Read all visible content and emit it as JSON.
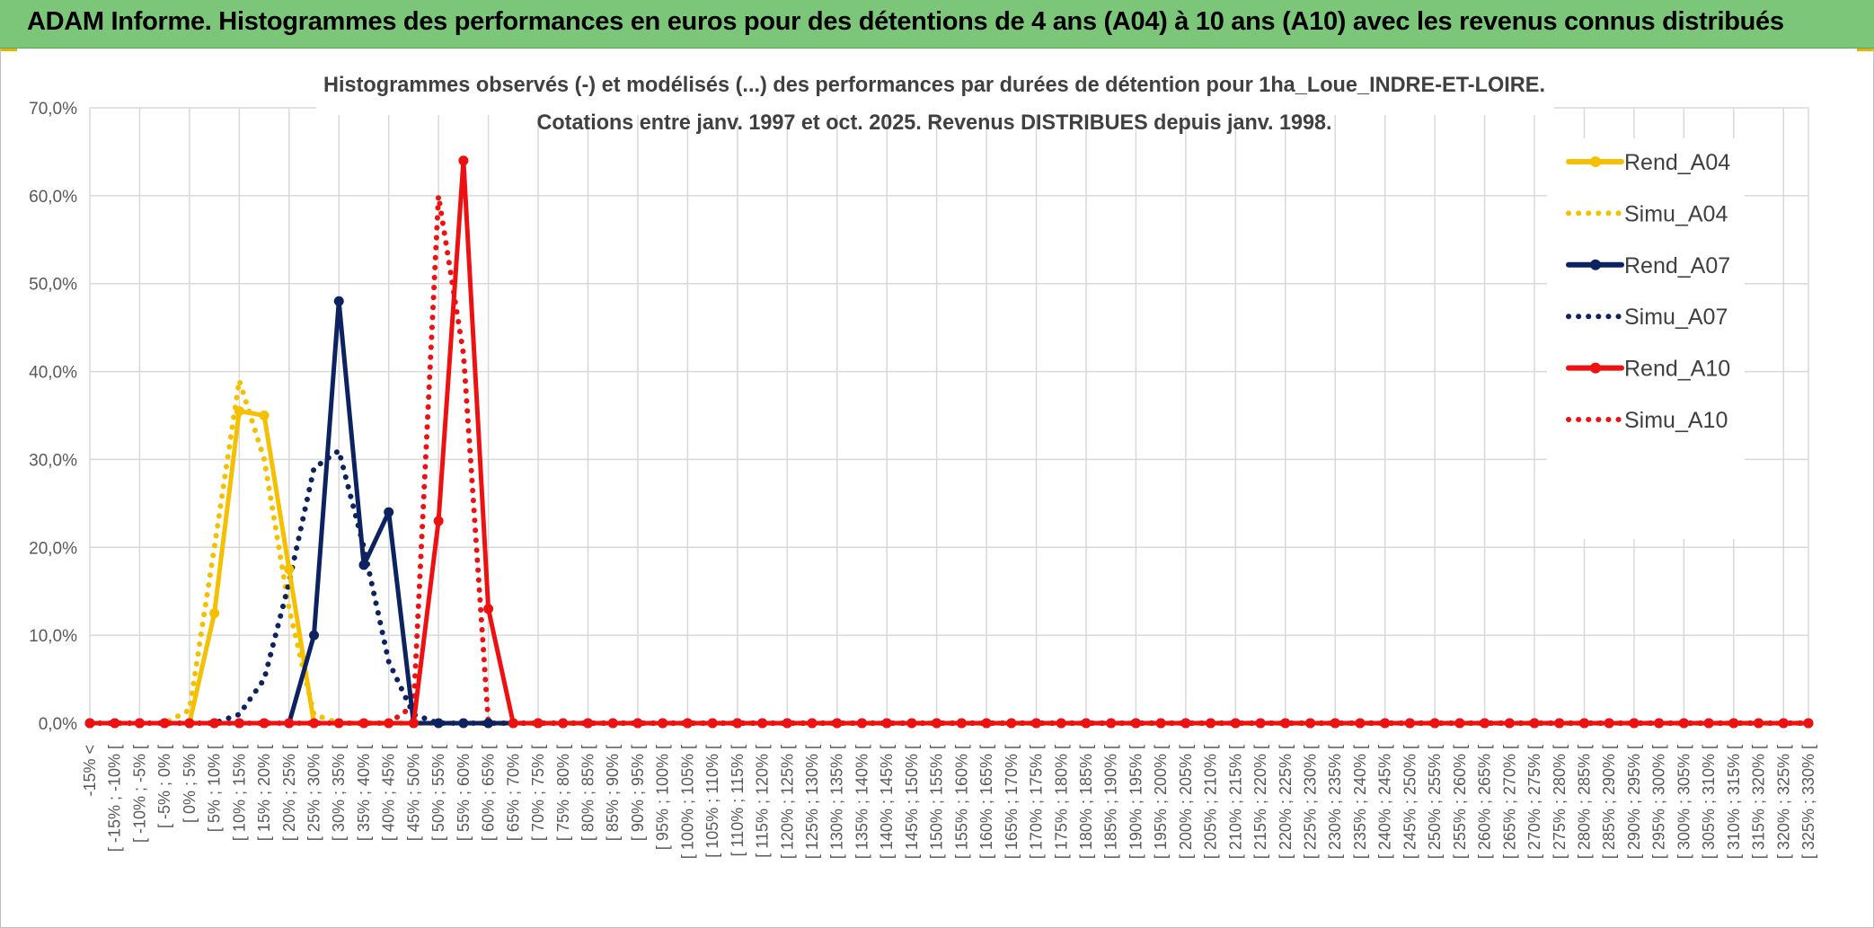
{
  "header": {
    "title": "ADAM Informe. Histogrammes des performances en euros pour des détentions de 4 ans (A04) à 10 ans (A10) avec les revenus connus distribués"
  },
  "colors": {
    "header_bg": "#7cc67a",
    "A04": "#f5c000",
    "A07": "#0d2260",
    "A10": "#ee1111",
    "grid": "#d9d9d9",
    "axis_text": "#595959"
  },
  "chart_data": {
    "type": "line",
    "title_lines": [
      "Histogrammes observés (-) et modélisés (...) des performances par durées de détention pour 1ha_Loue_INDRE-ET-LOIRE.",
      "Cotations entre janv. 1997 et oct. 2025.  Revenus DISTRIBUES depuis janv. 1998."
    ],
    "ylim": [
      0,
      70
    ],
    "yticks": [
      "0,0%",
      "10,0%",
      "20,0%",
      "30,0%",
      "40,0%",
      "50,0%",
      "60,0%",
      "70,0%"
    ],
    "categories": [
      "-15% <",
      "[ -15% ; -10% [",
      "[ -10% ; -5% [",
      "[ -5% ; 0% [",
      "[ 0% ; 5% [",
      "[ 5% ; 10% [",
      "[ 10% ; 15% [",
      "[ 15% ; 20% [",
      "[ 20% ; 25% [",
      "[ 25% ; 30% [",
      "[ 30% ; 35% [",
      "[ 35% ; 40% [",
      "[ 40% ; 45% [",
      "[ 45% ; 50% [",
      "[ 50% ; 55% [",
      "[ 55% ; 60% [",
      "[ 60% ; 65% [",
      "[ 65% ; 70% [",
      "[ 70% ; 75% [",
      "[ 75% ; 80% [",
      "[ 80% ; 85% [",
      "[ 85% ; 90% [",
      "[ 90% ; 95% [",
      "[ 95% ; 100% [",
      "[ 100% ; 105% [",
      "[ 105% ; 110% [",
      "[ 110% ; 115% [",
      "[ 115% ; 120% [",
      "[ 120% ; 125% [",
      "[ 125% ; 130% [",
      "[ 130% ; 135% [",
      "[ 135% ; 140% [",
      "[ 140% ; 145% [",
      "[ 145% ; 150% [",
      "[ 150% ; 155% [",
      "[ 155% ; 160% [",
      "[ 160% ; 165% [",
      "[ 165% ; 170% [",
      "[ 170% ; 175% [",
      "[ 175% ; 180% [",
      "[ 180% ; 185% [",
      "[ 185% ; 190% [",
      "[ 190% ; 195% [",
      "[ 195% ; 200% [",
      "[ 200% ; 205% [",
      "[ 205% ; 210% [",
      "[ 210% ; 215% [",
      "[ 215% ; 220% [",
      "[ 220% ; 225% [",
      "[ 225% ; 230% [",
      "[ 230% ; 235% [",
      "[ 235% ; 240% [",
      "[ 240% ; 245% [",
      "[ 245% ; 250% [",
      "[ 250% ; 255% [",
      "[ 255% ; 260% [",
      "[ 260% ; 265% [",
      "[ 265% ; 270% [",
      "[ 270% ; 275% [",
      "[ 275% ; 280% [",
      "[ 280% ; 285% [",
      "[ 285% ; 290% [",
      "[ 290% ; 295% [",
      "[ 295% ; 300% [",
      "[ 300% ; 305% [",
      "[ 305% ; 310% [",
      "[ 310% ; 315% [",
      "[ 315% ; 320% [",
      "[ 320% ; 325% [",
      "[ 325% ; 330% ["
    ],
    "series": [
      {
        "name": "Rend_A04",
        "style": "solid",
        "markers": true,
        "color": "#f5c000",
        "values": [
          0,
          0,
          0,
          0,
          0,
          12.5,
          35.5,
          35,
          17.5,
          0,
          0,
          0,
          0,
          0,
          0,
          0,
          0,
          0,
          0,
          0,
          0,
          0,
          0,
          0,
          0,
          0,
          0,
          0,
          0,
          0,
          0,
          0,
          0,
          0,
          0,
          0,
          0,
          0,
          0,
          0,
          0,
          0,
          0,
          0,
          0,
          0,
          0,
          0,
          0,
          0,
          0,
          0,
          0,
          0,
          0,
          0,
          0,
          0,
          0,
          0,
          0,
          0,
          0,
          0,
          0,
          0,
          0,
          0,
          0,
          0
        ]
      },
      {
        "name": "Simu_A04",
        "style": "dotted",
        "markers": false,
        "color": "#f5c000",
        "values": [
          0,
          0,
          0,
          0,
          1.5,
          20,
          39,
          30,
          13,
          1,
          0,
          0,
          0,
          0,
          0,
          0,
          0,
          0,
          0,
          0,
          0,
          0,
          0,
          0,
          0,
          0,
          0,
          0,
          0,
          0,
          0,
          0,
          0,
          0,
          0,
          0,
          0,
          0,
          0,
          0,
          0,
          0,
          0,
          0,
          0,
          0,
          0,
          0,
          0,
          0,
          0,
          0,
          0,
          0,
          0,
          0,
          0,
          0,
          0,
          0,
          0,
          0,
          0,
          0,
          0,
          0,
          0,
          0,
          0,
          0
        ]
      },
      {
        "name": "Rend_A07",
        "style": "solid",
        "markers": true,
        "color": "#0d2260",
        "values": [
          0,
          0,
          0,
          0,
          0,
          0,
          0,
          0,
          0,
          10,
          48,
          18,
          24,
          0,
          0,
          0,
          0,
          0,
          0,
          0,
          0,
          0,
          0,
          0,
          0,
          0,
          0,
          0,
          0,
          0,
          0,
          0,
          0,
          0,
          0,
          0,
          0,
          0,
          0,
          0,
          0,
          0,
          0,
          0,
          0,
          0,
          0,
          0,
          0,
          0,
          0,
          0,
          0,
          0,
          0,
          0,
          0,
          0,
          0,
          0,
          0,
          0,
          0,
          0,
          0,
          0,
          0,
          0,
          0,
          0
        ]
      },
      {
        "name": "Simu_A07",
        "style": "dotted",
        "markers": false,
        "color": "#0d2260",
        "values": [
          0,
          0,
          0,
          0,
          0,
          0,
          1,
          5,
          16,
          29,
          31,
          20,
          7,
          1,
          0,
          0,
          0,
          0,
          0,
          0,
          0,
          0,
          0,
          0,
          0,
          0,
          0,
          0,
          0,
          0,
          0,
          0,
          0,
          0,
          0,
          0,
          0,
          0,
          0,
          0,
          0,
          0,
          0,
          0,
          0,
          0,
          0,
          0,
          0,
          0,
          0,
          0,
          0,
          0,
          0,
          0,
          0,
          0,
          0,
          0,
          0,
          0,
          0,
          0,
          0,
          0,
          0,
          0,
          0,
          0
        ]
      },
      {
        "name": "Rend_A10",
        "style": "solid",
        "markers": true,
        "color": "#ee1111",
        "values": [
          0,
          0,
          0,
          0,
          0,
          0,
          0,
          0,
          0,
          0,
          0,
          0,
          0,
          0,
          23,
          64,
          13,
          0,
          0,
          0,
          0,
          0,
          0,
          0,
          0,
          0,
          0,
          0,
          0,
          0,
          0,
          0,
          0,
          0,
          0,
          0,
          0,
          0,
          0,
          0,
          0,
          0,
          0,
          0,
          0,
          0,
          0,
          0,
          0,
          0,
          0,
          0,
          0,
          0,
          0,
          0,
          0,
          0,
          0,
          0,
          0,
          0,
          0,
          0,
          0,
          0,
          0,
          0,
          0,
          0
        ]
      },
      {
        "name": "Simu_A10",
        "style": "dotted",
        "markers": false,
        "color": "#ee1111",
        "values": [
          0,
          0,
          0,
          0,
          0,
          0,
          0,
          0,
          0,
          0,
          0,
          0,
          0,
          2,
          60,
          42,
          0,
          0,
          0,
          0,
          0,
          0,
          0,
          0,
          0,
          0,
          0,
          0,
          0,
          0,
          0,
          0,
          0,
          0,
          0,
          0,
          0,
          0,
          0,
          0,
          0,
          0,
          0,
          0,
          0,
          0,
          0,
          0,
          0,
          0,
          0,
          0,
          0,
          0,
          0,
          0,
          0,
          0,
          0,
          0,
          0,
          0,
          0,
          0,
          0,
          0,
          0,
          0,
          0,
          0
        ]
      }
    ],
    "legend": {
      "position": "right"
    },
    "grid": true
  }
}
